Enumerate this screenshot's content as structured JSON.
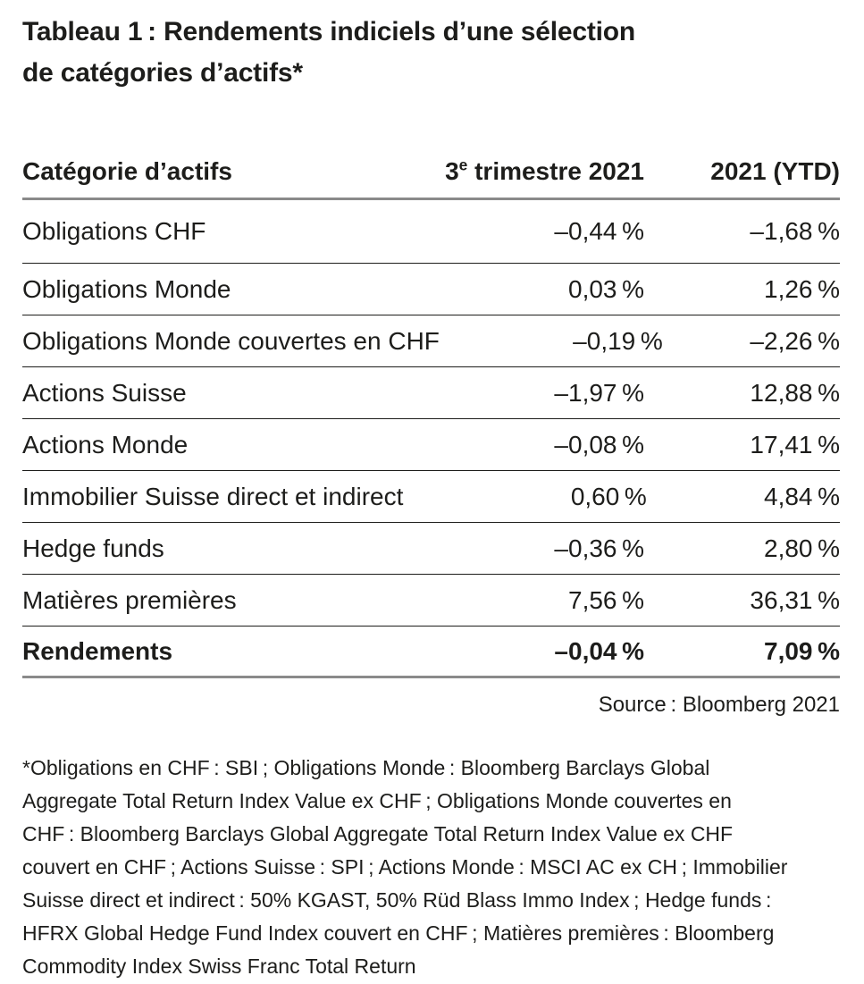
{
  "title": {
    "line1": "Tableau 1 : Rendements indiciels d’une sélection",
    "line2": "de catégories d’actifs*"
  },
  "table": {
    "header": {
      "category": "Catégorie d’actifs",
      "q3_base": "3",
      "q3_sup": "e",
      "q3_rest": " trimestre 2021",
      "ytd": "2021 (YTD)"
    },
    "rows": [
      {
        "label": "Obligations CHF",
        "q3": "–0,44 %",
        "ytd": "–1,68 %"
      },
      {
        "label": "Obligations Monde",
        "q3": "0,03 %",
        "ytd": "1,26 %"
      },
      {
        "label": "Obligations Monde couvertes en CHF",
        "q3": "–0,19 %",
        "ytd": "–2,26 %"
      },
      {
        "label": "Actions Suisse",
        "q3": "–1,97 %",
        "ytd": "12,88 %"
      },
      {
        "label": "Actions Monde",
        "q3": "–0,08 %",
        "ytd": "17,41 %"
      },
      {
        "label": "Immobilier Suisse direct et indirect",
        "q3": "0,60 %",
        "ytd": "4,84 %"
      },
      {
        "label": "Hedge funds",
        "q3": "–0,36 %",
        "ytd": "2,80 %"
      },
      {
        "label": "Matières premières",
        "q3": "7,56 %",
        "ytd": "36,31 %"
      }
    ],
    "total_row": {
      "label": "Rendements",
      "q3": "–0,04 %",
      "ytd": "7,09 %"
    }
  },
  "source": "Source : Bloomberg 2021",
  "footnote_lines": [
    "*Obligations en CHF : SBI ; Obligations Monde : Bloomberg Barclays Global",
    "Aggregate Total Return Index Value ex CHF ; Obligations Monde couvertes en",
    "CHF : Bloomberg Barclays Global Aggregate Total Return Index Value ex CHF",
    "couvert en CHF ; Actions Suisse : SPI ; Actions Monde : MSCI AC ex CH ; Immobilier",
    "Suisse direct et indirect : 50% KGAST, 50% Rüd Blass Immo Index ; Hedge funds :",
    "HFRX Global Hedge Fund Index couvert en CHF ; Matières premières : Bloomberg",
    "Commodity Index Swiss Franc Total Return"
  ],
  "colors": {
    "text": "#1d1d1b",
    "rule_thin": "#1d1d1b",
    "rule_thick": "#8a8a8a",
    "background": "#ffffff"
  }
}
